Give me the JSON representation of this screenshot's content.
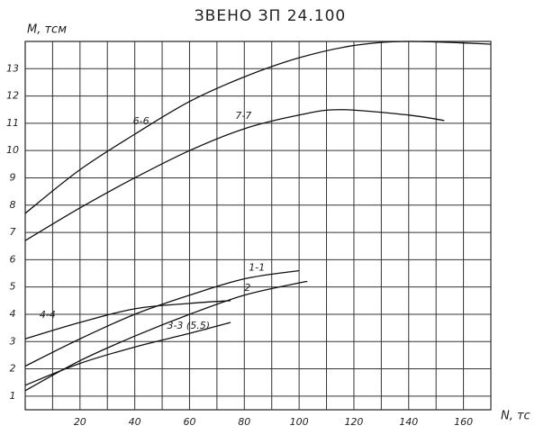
{
  "chart_data": {
    "type": "line",
    "title": "ЗВЕНО ЗП 24.100",
    "y_label": "M, тсм",
    "x_label": "N, тс",
    "xlim": [
      0,
      170
    ],
    "xticks": [
      20,
      40,
      60,
      80,
      100,
      120,
      140,
      160
    ],
    "ylim": [
      0.5,
      14
    ],
    "yticks": [
      1,
      2,
      3,
      4,
      5,
      6,
      7,
      8,
      9,
      10,
      11,
      12,
      13
    ],
    "grid": true,
    "series": [
      {
        "name": "6-6",
        "color": "#111111",
        "x": [
          0,
          20,
          40,
          60,
          80,
          100,
          120,
          140,
          170
        ],
        "values": [
          7.7,
          9.3,
          10.6,
          11.8,
          12.7,
          13.4,
          13.85,
          14,
          13.9
        ]
      },
      {
        "name": "7-7",
        "color": "#111111",
        "x": [
          0,
          20,
          40,
          60,
          80,
          100,
          115,
          140,
          153
        ],
        "values": [
          6.7,
          7.9,
          9.0,
          10.0,
          10.8,
          11.3,
          11.5,
          11.3,
          11.1
        ]
      },
      {
        "name": "1-1",
        "color": "#111111",
        "x": [
          0,
          20,
          40,
          60,
          80,
          100
        ],
        "values": [
          2.1,
          3.1,
          4.0,
          4.7,
          5.3,
          5.6
        ]
      },
      {
        "name": "2",
        "color": "#111111",
        "x": [
          0,
          20,
          40,
          60,
          80,
          100,
          103
        ],
        "values": [
          1.2,
          2.3,
          3.2,
          4.0,
          4.7,
          5.15,
          5.2
        ]
      },
      {
        "name": "3-3 (5.5)",
        "color": "#111111",
        "x": [
          0,
          20,
          40,
          60,
          75
        ],
        "values": [
          1.4,
          2.2,
          2.8,
          3.3,
          3.7
        ]
      },
      {
        "name": "4-4",
        "color": "#111111",
        "x": [
          0,
          20,
          40,
          60,
          75
        ],
        "values": [
          3.1,
          3.7,
          4.2,
          4.4,
          4.5
        ]
      }
    ]
  }
}
